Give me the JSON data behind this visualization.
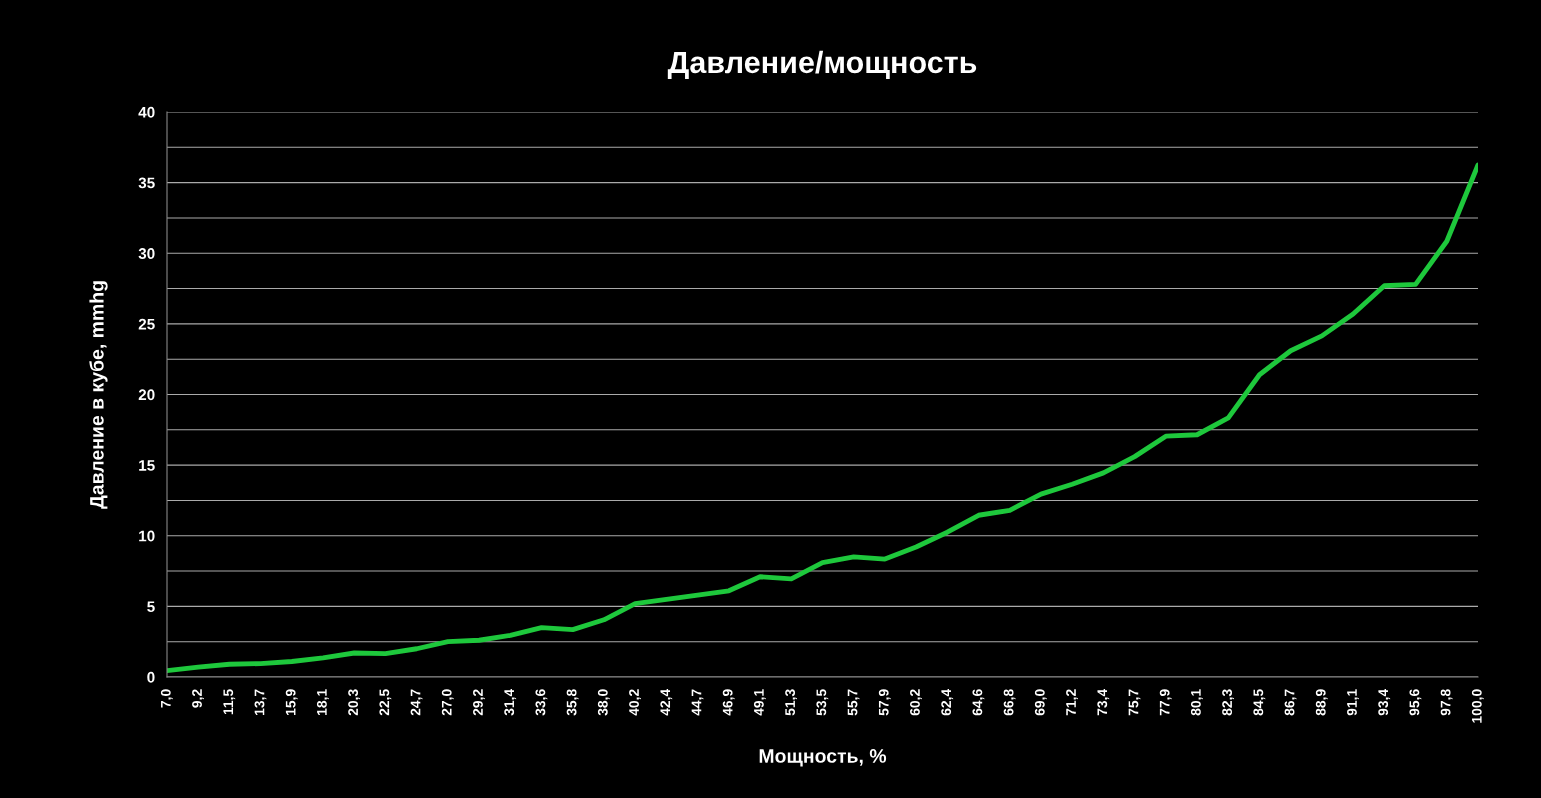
{
  "chart_data": {
    "type": "line",
    "title": "Давление/мощность",
    "xlabel": "Мощность, %",
    "ylabel": "Давление в кубе, mmhg",
    "categories": [
      "7,0",
      "9,2",
      "11,5",
      "13,7",
      "15,9",
      "18,1",
      "20,3",
      "22,5",
      "24,7",
      "27,0",
      "29,2",
      "31,4",
      "33,6",
      "35,8",
      "38,0",
      "40,2",
      "42,4",
      "44,7",
      "46,9",
      "49,1",
      "51,3",
      "53,5",
      "55,7",
      "57,9",
      "60,2",
      "62,4",
      "64,6",
      "66,8",
      "69,0",
      "71,2",
      "73,4",
      "75,7",
      "77,9",
      "80,1",
      "82,3",
      "84,5",
      "86,7",
      "88,9",
      "91,1",
      "93,4",
      "95,6",
      "97,8",
      "100,0"
    ],
    "series": [
      {
        "color": "#1ec83c",
        "values": [
          0.45,
          0.7,
          0.9,
          0.95,
          1.1,
          1.35,
          1.7,
          1.65,
          2.0,
          2.5,
          2.6,
          2.95,
          3.5,
          3.35,
          4.05,
          5.2,
          5.5,
          5.8,
          6.1,
          7.1,
          6.95,
          8.1,
          8.5,
          8.35,
          9.2,
          10.25,
          11.45,
          11.8,
          12.95,
          13.65,
          14.45,
          15.6,
          17.05,
          17.15,
          18.35,
          21.4,
          23.1,
          24.15,
          25.7,
          27.7,
          27.8,
          30.85,
          36.25
        ]
      }
    ],
    "ylim": [
      0,
      40
    ],
    "yticks": [
      0,
      {
        "value": 2.5,
        "label": null
      },
      5,
      {
        "value": 7.5,
        "label": null
      },
      10,
      {
        "value": 12.5,
        "label": null
      },
      15,
      {
        "value": 17.5,
        "label": null
      },
      20,
      {
        "value": 22.5,
        "label": null
      },
      25,
      {
        "value": 27.5,
        "label": null
      },
      30,
      {
        "value": 32.5,
        "label": null
      },
      35,
      {
        "value": 37.5,
        "label": null
      },
      40
    ],
    "grid": "y",
    "marker": "none",
    "line_style": "solid"
  }
}
